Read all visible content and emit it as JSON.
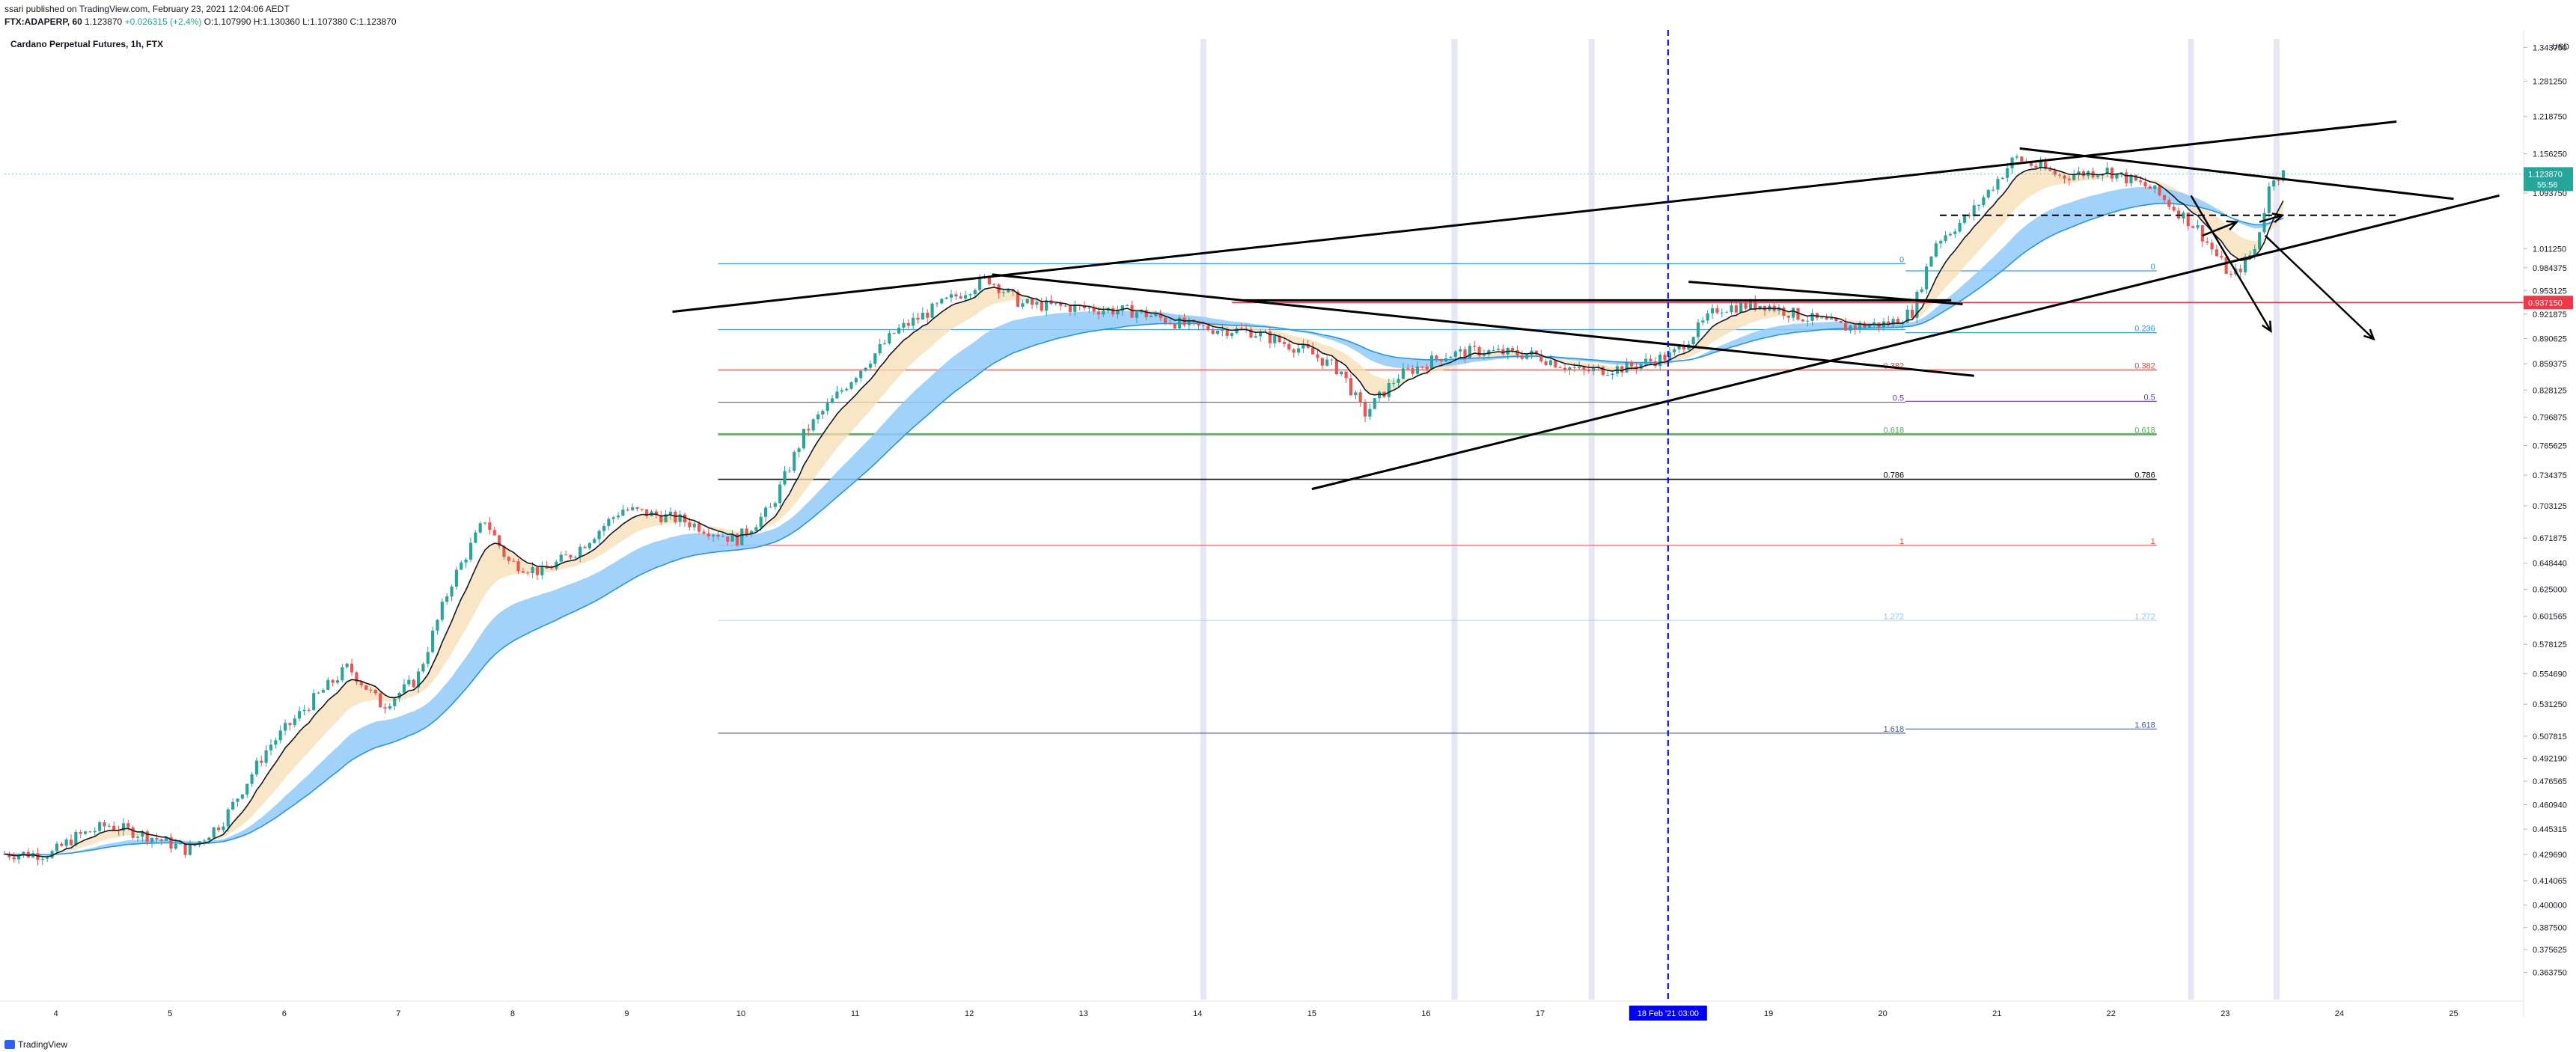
{
  "header": {
    "published": "ssari published on TradingView.com, February 23, 2021 12:04:06 AEDT",
    "symbol": "FTX:ADAPERP, 60",
    "last": "1.123870",
    "change": "+0.026315 (+2.4%)",
    "open": "O:1.107990",
    "high": "H:1.130360",
    "low": "L:1.107380",
    "close": "C:1.123870"
  },
  "footer": {
    "brand": "TradingView"
  },
  "chart_data": {
    "type": "candlestick",
    "title": "Cardano Perpetual Futures, 1h, FTX",
    "currency": "USD",
    "price_scale": "log",
    "ylim": [
      0.35,
      1.36
    ],
    "xlim": [
      3.55,
      25.6
    ],
    "y_ticks": [
      "1.343750",
      "1.281250",
      "1.218750",
      "1.156250",
      "1.093750",
      "1.011250",
      "0.984375",
      "0.953125",
      "0.921875",
      "0.890625",
      "0.859375",
      "0.828125",
      "0.796875",
      "0.765625",
      "0.734375",
      "0.703125",
      "0.671875",
      "0.648440",
      "0.625000",
      "0.601565",
      "0.578125",
      "0.554690",
      "0.531250",
      "0.507815",
      "0.492190",
      "0.476565",
      "0.460940",
      "0.445315",
      "0.429690",
      "0.414065",
      "0.400000",
      "0.387500",
      "0.375625",
      "0.363750"
    ],
    "x_ticks": [
      4,
      5,
      6,
      7,
      8,
      9,
      10,
      11,
      12,
      13,
      14,
      15,
      16,
      17,
      19,
      20,
      21,
      22,
      23,
      24,
      25
    ],
    "x_tick_labels": [
      "4",
      "5",
      "6",
      "7",
      "8",
      "9",
      "10",
      "11",
      "12",
      "13",
      "14",
      "15",
      "16",
      "17",
      "19",
      "20",
      "21",
      "22",
      "23",
      "24",
      "25"
    ],
    "last_price": {
      "label": "1.123870",
      "value": 1.12387,
      "countdown": "55:56"
    },
    "marked_level": {
      "label": "0.937150",
      "value": 0.93715
    },
    "crosshair_x": {
      "x": 18.12,
      "label": "18 Feb '21  03:00"
    },
    "price_path": [
      [
        3.55,
        0.43
      ],
      [
        4.0,
        0.43
      ],
      [
        4.2,
        0.44
      ],
      [
        4.5,
        0.448
      ],
      [
        4.9,
        0.44
      ],
      [
        5.2,
        0.432
      ],
      [
        5.5,
        0.45
      ],
      [
        5.9,
        0.5
      ],
      [
        6.3,
        0.535
      ],
      [
        6.6,
        0.56
      ],
      [
        6.9,
        0.53
      ],
      [
        7.2,
        0.55
      ],
      [
        7.5,
        0.63
      ],
      [
        7.8,
        0.69
      ],
      [
        8.0,
        0.65
      ],
      [
        8.3,
        0.64
      ],
      [
        8.6,
        0.66
      ],
      [
        9.0,
        0.7
      ],
      [
        9.5,
        0.69
      ],
      [
        10.0,
        0.67
      ],
      [
        10.3,
        0.7
      ],
      [
        10.6,
        0.78
      ],
      [
        11.0,
        0.84
      ],
      [
        11.4,
        0.9
      ],
      [
        11.8,
        0.935
      ],
      [
        12.2,
        0.97
      ],
      [
        12.5,
        0.935
      ],
      [
        13.0,
        0.93
      ],
      [
        13.5,
        0.925
      ],
      [
        14.0,
        0.905
      ],
      [
        14.5,
        0.9
      ],
      [
        15.0,
        0.875
      ],
      [
        15.3,
        0.85
      ],
      [
        15.5,
        0.8
      ],
      [
        15.8,
        0.845
      ],
      [
        16.2,
        0.87
      ],
      [
        16.5,
        0.875
      ],
      [
        17.0,
        0.87
      ],
      [
        17.4,
        0.85
      ],
      [
        17.8,
        0.855
      ],
      [
        18.2,
        0.87
      ],
      [
        18.6,
        0.93
      ],
      [
        19.0,
        0.935
      ],
      [
        19.3,
        0.92
      ],
      [
        19.7,
        0.905
      ],
      [
        20.1,
        0.91
      ],
      [
        20.3,
        0.925
      ],
      [
        20.5,
        1.02
      ],
      [
        20.8,
        1.06
      ],
      [
        21.2,
        1.15
      ],
      [
        21.6,
        1.12
      ],
      [
        22.0,
        1.13
      ],
      [
        22.4,
        1.1
      ],
      [
        22.8,
        1.04
      ],
      [
        23.1,
        0.97
      ],
      [
        23.3,
        1.01
      ],
      [
        23.45,
        1.12
      ],
      [
        23.55,
        1.124
      ]
    ],
    "fib_retracements": [
      {
        "x1": 9.8,
        "x2": 20.2,
        "levels": [
          {
            "label": "0",
            "value": 0.99
          },
          {
            "label": "0.236",
            "value": 0.902
          },
          {
            "label": "0.382",
            "value": 0.852
          },
          {
            "label": "0.5",
            "value": 0.814
          },
          {
            "label": "0.618",
            "value": 0.778
          },
          {
            "label": "0.786",
            "value": 0.73
          },
          {
            "label": "1",
            "value": 0.665
          },
          {
            "label": "1.272",
            "value": 0.598
          },
          {
            "label": "1.618",
            "value": 0.51
          }
        ]
      },
      {
        "x1": 20.2,
        "x2": 22.4,
        "levels": [
          {
            "label": "0",
            "value": 0.98
          },
          {
            "label": "0.236",
            "value": 0.898
          },
          {
            "label": "0.382",
            "value": 0.852
          },
          {
            "label": "0.5",
            "value": 0.815
          },
          {
            "label": "0.618",
            "value": 0.778
          },
          {
            "label": "0.786",
            "value": 0.73
          },
          {
            "label": "1",
            "value": 0.665
          },
          {
            "label": "1.272",
            "value": 0.598
          },
          {
            "label": "1.618",
            "value": 0.513
          }
        ]
      }
    ],
    "trend_lines": [
      {
        "x1": 9.4,
        "y1": 0.925,
        "x2": 24.5,
        "y2": 1.21
      },
      {
        "x1": 15.0,
        "y1": 0.72,
        "x2": 25.4,
        "y2": 1.09
      },
      {
        "x1": 12.2,
        "y1": 0.975,
        "x2": 20.8,
        "y2": 0.845
      },
      {
        "x1": 21.2,
        "y1": 1.165,
        "x2": 25.0,
        "y2": 1.085
      },
      {
        "x1": 18.3,
        "y1": 0.965,
        "x2": 20.7,
        "y2": 0.935
      },
      {
        "x1": 14.4,
        "y1": 0.94,
        "x2": 20.6,
        "y2": 0.94
      }
    ],
    "dashed_level": {
      "x1": 20.5,
      "x2": 24.5,
      "value": 1.06
    },
    "projection_arrows": [
      {
        "x1": 22.7,
        "y1": 1.09,
        "x2": 23.4,
        "y2": 0.9
      },
      {
        "x1": 23.35,
        "y1": 1.03,
        "x2": 24.3,
        "y2": 0.89
      },
      {
        "x1": 22.8,
        "y1": 1.03,
        "x2": 23.1,
        "y2": 1.05
      },
      {
        "x1": 23.3,
        "y1": 1.05,
        "x2": 23.5,
        "y2": 1.06
      }
    ],
    "session_bands": [
      14.05,
      16.25,
      17.45,
      22.7,
      23.45
    ],
    "colors": {
      "bull": "#26a69a",
      "bear": "#ef5350",
      "ema_fast": "#131722",
      "ribbon_blue": "#90caf9",
      "ribbon_tan": "#f5deb3",
      "fib_blue": "#2196f3",
      "fib_red": "#f44336",
      "fib_violet": "#673ab7",
      "fib_green": "#4caf50",
      "fib_black": "#000000",
      "fib_faint": "#90caf9",
      "fib_navy": "#3f51b5",
      "crosshair": "#0000ff",
      "session": "#c5cae9",
      "marked": "#f23645",
      "last": "#26a69a"
    }
  }
}
